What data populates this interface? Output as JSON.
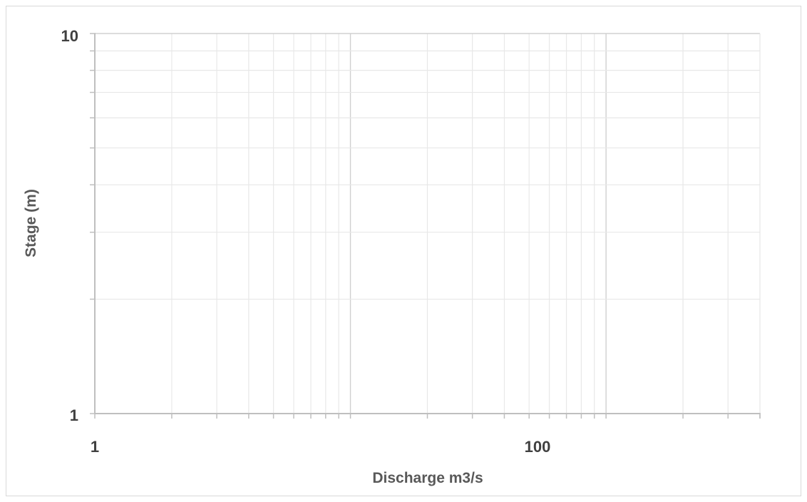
{
  "chart_data": {
    "type": "scatter",
    "title": "",
    "xlabel": "Discharge m3/s",
    "ylabel": "Stage (m)",
    "x_scale": "log",
    "y_scale": "log",
    "xlim": [
      1,
      400
    ],
    "ylim": [
      1,
      10
    ],
    "x_tick_labels": [
      "1",
      "100"
    ],
    "y_tick_labels": [
      "1",
      "10"
    ],
    "major_gridlines": true,
    "minor_gridlines": true,
    "series": [],
    "colors": {
      "axis": "#bfbfbf",
      "minor_grid": "#e8e8e8",
      "major_grid": "#d0d0d0",
      "tick_text": "#404040",
      "title_text": "#595959"
    }
  }
}
